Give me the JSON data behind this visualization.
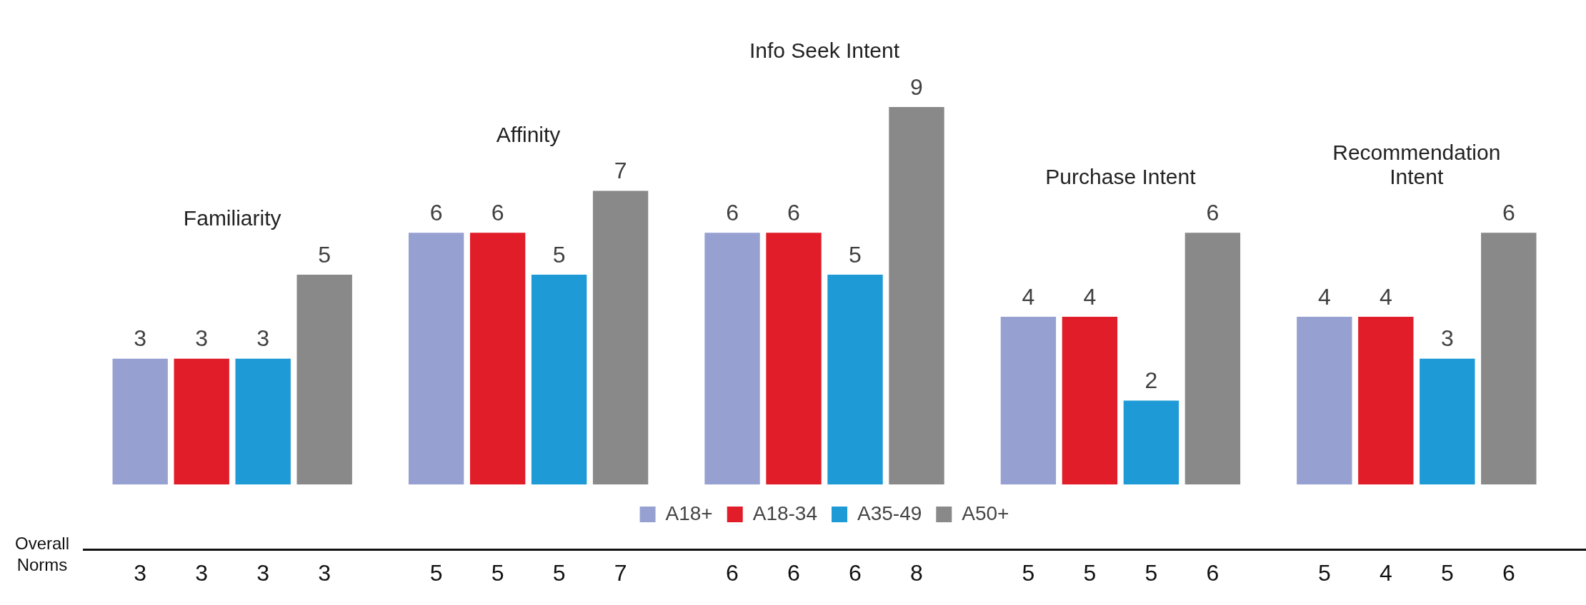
{
  "chart_data": [
    {
      "type": "bar",
      "categories": [
        "Familiarity",
        "Affinity",
        "Info Seek Intent",
        "Purchase Intent",
        "Recommendation Intent"
      ],
      "series": [
        {
          "name": "A18+",
          "color": "#97a1d1",
          "values": [
            3,
            6,
            6,
            4,
            4
          ]
        },
        {
          "name": "A18-34",
          "color": "#e11d2a",
          "values": [
            3,
            6,
            6,
            4,
            4
          ]
        },
        {
          "name": "A35-49",
          "color": "#1e9ad6",
          "values": [
            3,
            5,
            5,
            2,
            3
          ]
        },
        {
          "name": "A50+",
          "color": "#898989",
          "values": [
            5,
            7,
            9,
            6,
            6
          ]
        }
      ],
      "data_labels": true,
      "legend": "bottom",
      "grid": false
    },
    {
      "type": "other",
      "ylabel": "Overall Norms",
      "annotations": [
        "3",
        "3",
        "3",
        "3",
        "5",
        "5",
        "5",
        "7",
        "6",
        "6",
        "6",
        "8",
        "5",
        "5",
        "5",
        "6",
        "5",
        "4",
        "5",
        "6"
      ]
    }
  ]
}
